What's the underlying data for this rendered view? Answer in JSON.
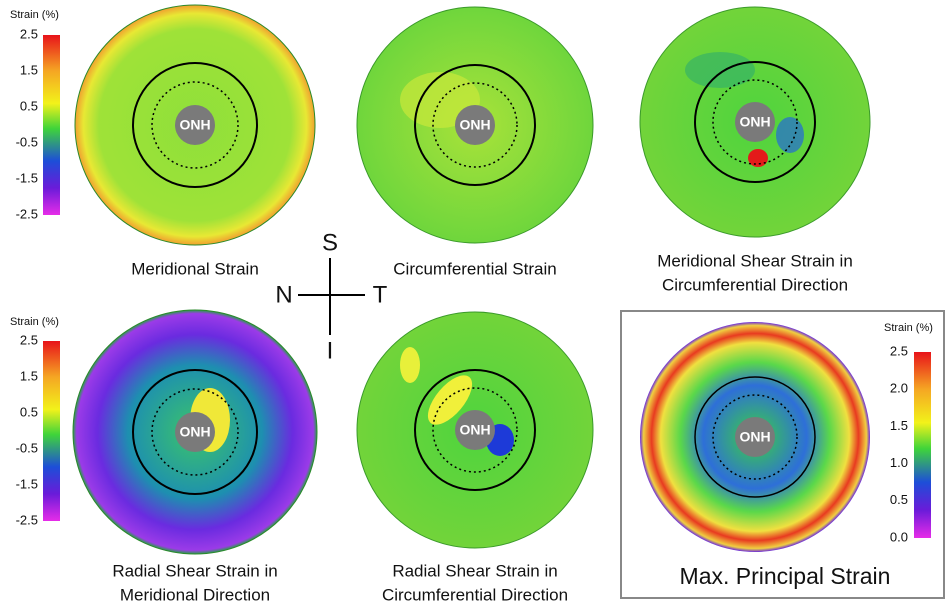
{
  "colorbars": [
    {
      "title": "Strain (%)",
      "ticks": [
        "2.5",
        "1.5",
        "0.5",
        "-0.5",
        "-1.5",
        "-2.5"
      ]
    },
    {
      "title": "Strain (%)",
      "ticks": [
        "2.5",
        "1.5",
        "0.5",
        "-0.5",
        "-1.5",
        "-2.5"
      ]
    },
    {
      "title": "Strain (%)",
      "ticks": [
        "2.5",
        "2.0",
        "1.5",
        "1.0",
        "0.5",
        "0.0"
      ]
    }
  ],
  "panels": [
    {
      "center": "ONH",
      "label": [
        "Meridional Strain"
      ]
    },
    {
      "center": "ONH",
      "label": [
        "Circumferential Strain"
      ]
    },
    {
      "center": "ONH",
      "label": [
        "Meridional Shear Strain in",
        "Circumferential Direction"
      ]
    },
    {
      "center": "ONH",
      "label": [
        "Radial Shear Strain in",
        "Meridional Direction"
      ]
    },
    {
      "center": "ONH",
      "label": [
        "Radial Shear Strain in",
        "Circumferential Direction"
      ]
    },
    {
      "center": "ONH",
      "label": [
        "Max. Principal Strain"
      ]
    }
  ],
  "compass": {
    "superior": "S",
    "nasal": "N",
    "temporal": "T",
    "inferior": "I"
  }
}
